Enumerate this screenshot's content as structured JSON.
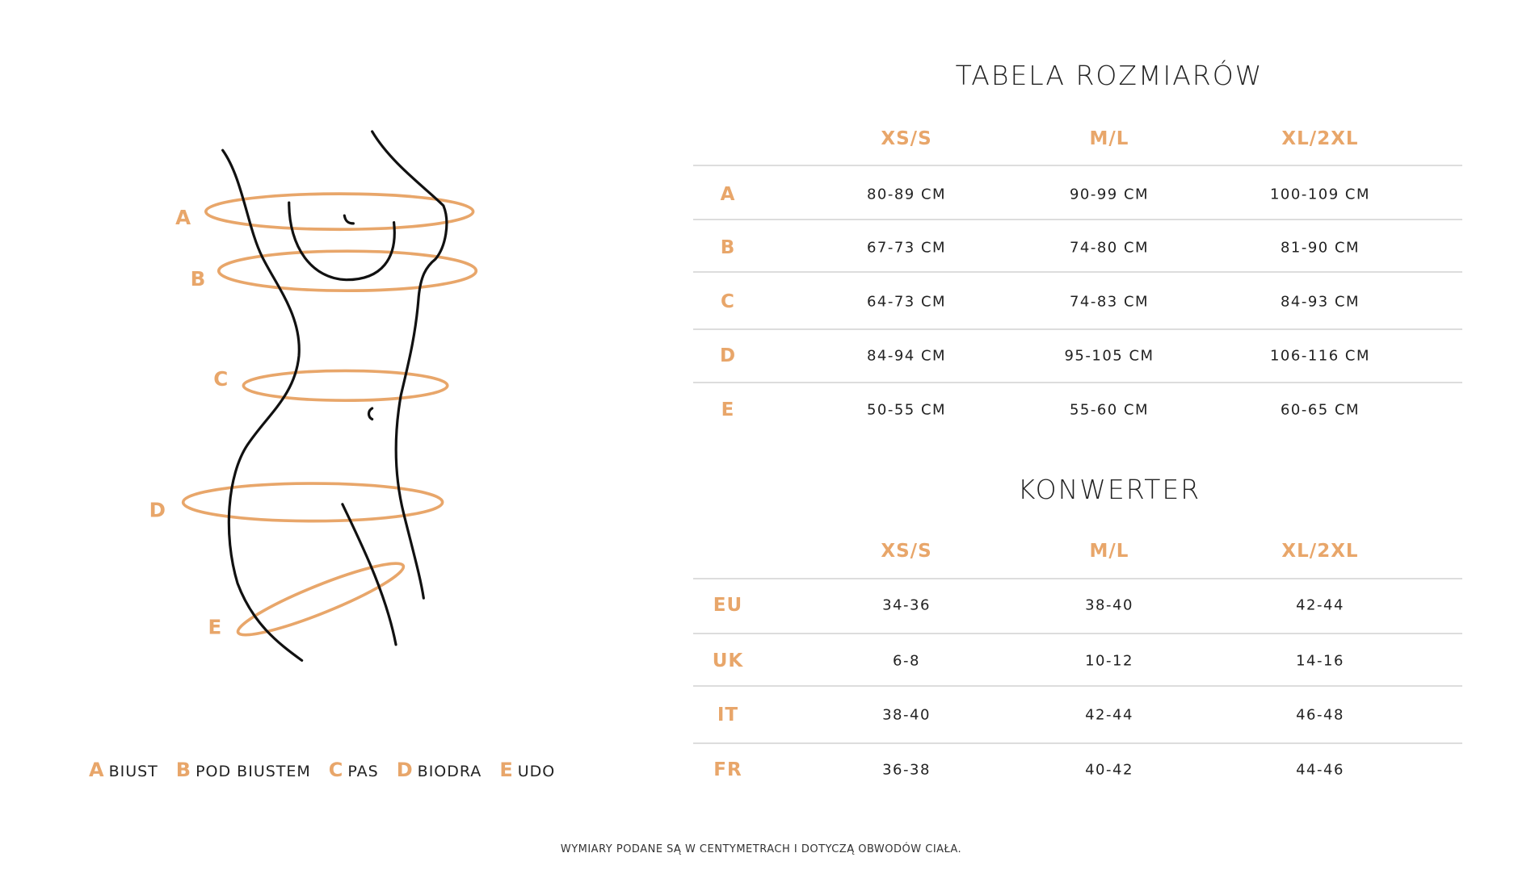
{
  "accent_color": "#e8a66a",
  "size_table": {
    "title": "TABELA ROZMIARÓW",
    "columns": [
      "XS/S",
      "M/L",
      "XL/2XL"
    ],
    "rows": [
      {
        "label": "A",
        "values": [
          "80-89 CM",
          "90-99 CM",
          "100-109 CM"
        ]
      },
      {
        "label": "B",
        "values": [
          "67-73 CM",
          "74-80 CM",
          "81-90 CM"
        ]
      },
      {
        "label": "C",
        "values": [
          "64-73 CM",
          "74-83 CM",
          "84-93 CM"
        ]
      },
      {
        "label": "D",
        "values": [
          "84-94 CM",
          "95-105 CM",
          "106-116 CM"
        ]
      },
      {
        "label": "E",
        "values": [
          "50-55 CM",
          "55-60 CM",
          "60-65 CM"
        ]
      }
    ]
  },
  "converter": {
    "title": "KONWERTER",
    "columns": [
      "XS/S",
      "M/L",
      "XL/2XL"
    ],
    "rows": [
      {
        "label": "EU",
        "values": [
          "34-36",
          "38-40",
          "42-44"
        ]
      },
      {
        "label": "UK",
        "values": [
          "6-8",
          "10-12",
          "14-16"
        ]
      },
      {
        "label": "IT",
        "values": [
          "38-40",
          "42-44",
          "46-48"
        ]
      },
      {
        "label": "FR",
        "values": [
          "36-38",
          "40-42",
          "44-46"
        ]
      }
    ]
  },
  "figure_labels": [
    "A",
    "B",
    "C",
    "D",
    "E"
  ],
  "legend": [
    {
      "key": "A",
      "label": "BIUST"
    },
    {
      "key": "B",
      "label": "POD BIUSTEM"
    },
    {
      "key": "C",
      "label": "PAS"
    },
    {
      "key": "D",
      "label": "BIODRA"
    },
    {
      "key": "E",
      "label": "UDO"
    }
  ],
  "footnote": "WYMIARY PODANE SĄ W CENTYMETRACH I DOTYCZĄ OBWODÓW CIAŁA."
}
